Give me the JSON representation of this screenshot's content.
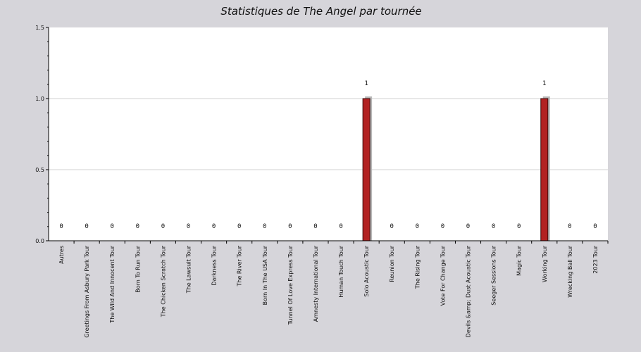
{
  "chart_data": {
    "type": "bar",
    "title": "Statistiques de The Angel par tournée",
    "xlabel": "",
    "ylabel": "",
    "ylim": [
      0,
      1.5
    ],
    "yticks": [
      "0.0",
      "0.5",
      "1.0",
      "1.5"
    ],
    "grid": true,
    "categories": [
      "Autres",
      "Greetings From Asbury Park Tour",
      "The Wild And Innocent Tour",
      "Born To Run Tour",
      "The Chicken Scratch Tour",
      "The Lawsuit Tour",
      "Darkness Tour",
      "The River Tour",
      "Born In The USA Tour",
      "Tunnel Of Love Express Tour",
      "Amnesty International Tour",
      "Human Touch Tour",
      "Solo Acoustic Tour",
      "Reunion Tour",
      "The Rising Tour",
      "Vote For Change Tour",
      "Devils &amp; Dust Acoustic Tour",
      "Seeger Sessions Tour",
      "Magic Tour",
      "Working Tour",
      "Wrecking Ball Tour",
      "2023 Tour"
    ],
    "values": [
      0,
      0,
      0,
      0,
      0,
      0,
      0,
      0,
      0,
      0,
      0,
      0,
      1,
      0,
      0,
      0,
      0,
      0,
      0,
      1,
      0,
      0
    ],
    "data_labels": [
      "0",
      "0",
      "0",
      "0",
      "0",
      "0",
      "0",
      "0",
      "0",
      "0",
      "0",
      "0",
      "1",
      "0",
      "0",
      "0",
      "0",
      "0",
      "0",
      "1",
      "0",
      "0"
    ],
    "bar_color": "#b22222"
  }
}
